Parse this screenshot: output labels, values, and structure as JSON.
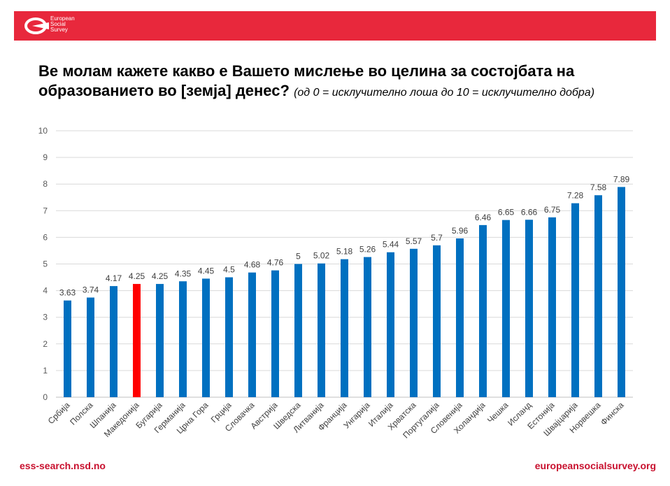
{
  "header": {
    "logo_lines": [
      "European",
      "Social",
      "Survey"
    ],
    "brand_color": "#e8283c"
  },
  "title": {
    "main": "Ве молам кажете какво е Вашето мислење во целина за состојбата на образованието во [земја] денес?",
    "sub": "(од 0 = исклучително лоша до 10 = исклучително добра)"
  },
  "footer": {
    "left": "ess-search.nsd.no",
    "right": "europeansocialsurvey.org"
  },
  "chart_data": {
    "type": "bar",
    "categories": [
      "Србија",
      "Полска",
      "Шпанија",
      "Македонија",
      "Бугарија",
      "Германија",
      "Црна Гора",
      "Грција",
      "Словачка",
      "Австрија",
      "Шведска",
      "Литванија",
      "Франција",
      "Унгарија",
      "Италија",
      "Хрватска",
      "Португалија",
      "Словенија",
      "Холандија",
      "Чешка",
      "Исланд",
      "Естонија",
      "Швајцарија",
      "Норвешка",
      "Финска"
    ],
    "values": [
      3.63,
      3.74,
      4.17,
      4.25,
      4.25,
      4.35,
      4.45,
      4.5,
      4.68,
      4.76,
      5,
      5.02,
      5.18,
      5.26,
      5.44,
      5.57,
      5.7,
      5.96,
      6.46,
      6.65,
      6.66,
      6.75,
      7.28,
      7.58,
      7.89
    ],
    "value_labels": [
      "3.63",
      "3.74",
      "4.17",
      "4.25",
      "4.25",
      "4.35",
      "4.45",
      "4.5",
      "4.68",
      "4.76",
      "5",
      "5.02",
      "5.18",
      "5.26",
      "5.44",
      "5.57",
      "5.7",
      "5.96",
      "6.46",
      "6.65",
      "6.66",
      "6.75",
      "7.28",
      "7.58",
      "7.89"
    ],
    "highlight_index": 3,
    "bar_color": "#0070c0",
    "highlight_color": "#ff0000",
    "ylim": [
      0,
      10
    ],
    "yticks": [
      "0",
      "1",
      "2",
      "3",
      "4",
      "5",
      "6",
      "7",
      "8",
      "9",
      "10"
    ],
    "grid": true,
    "xlabel": "",
    "ylabel": ""
  }
}
